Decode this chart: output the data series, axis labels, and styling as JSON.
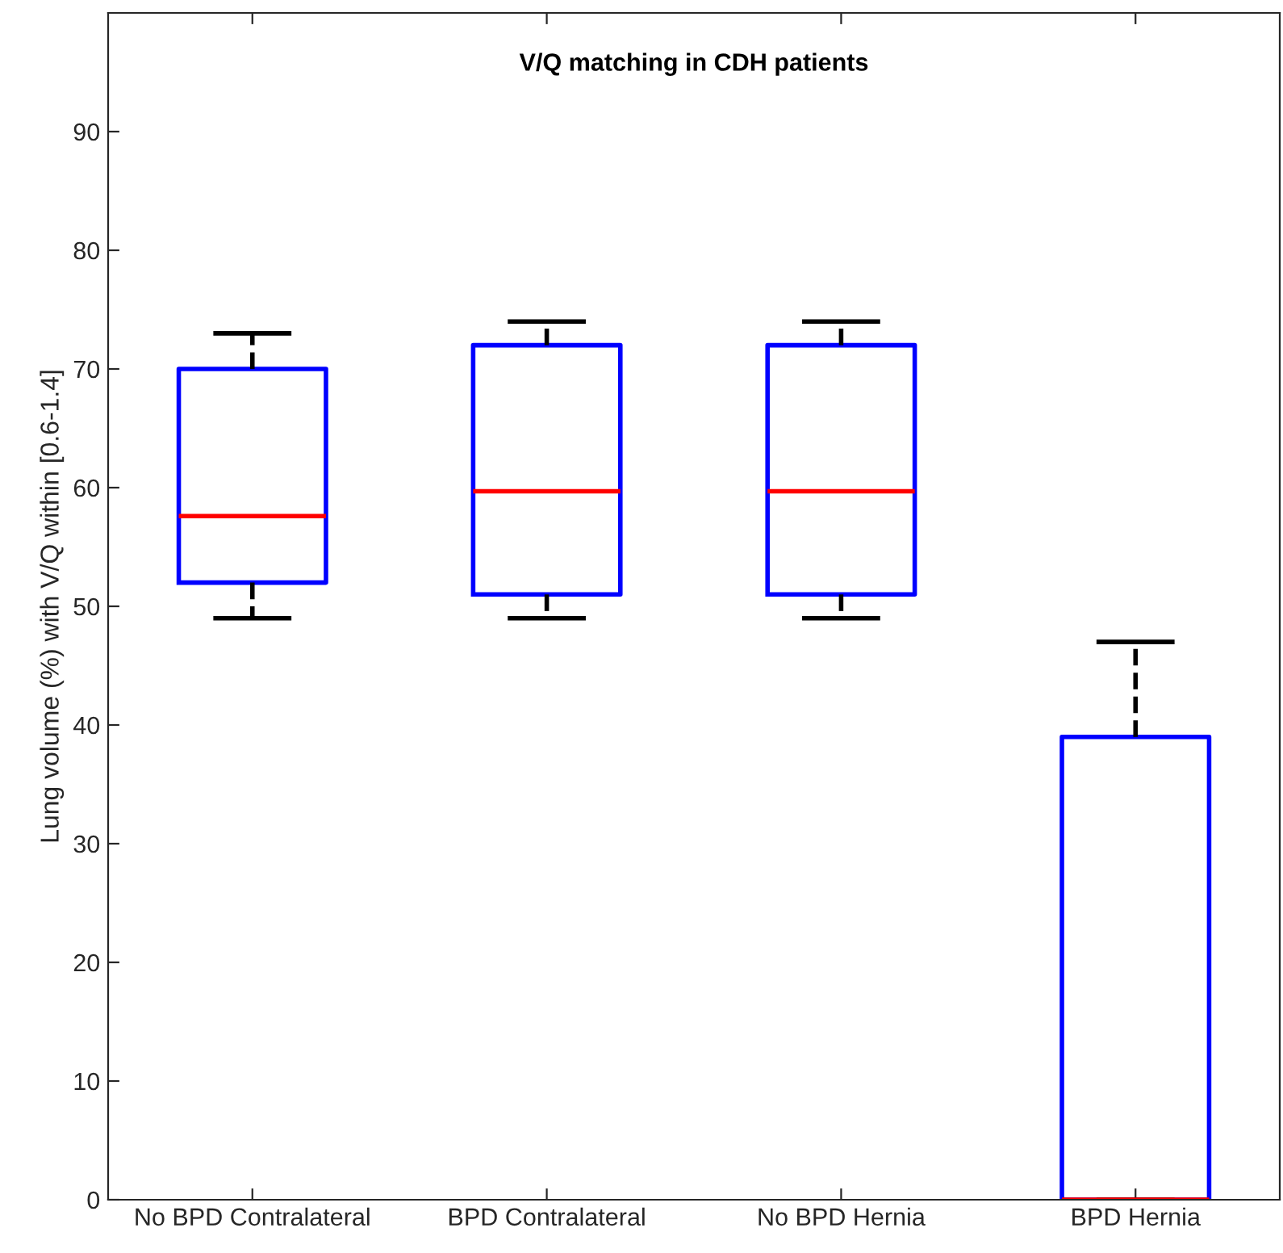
{
  "chart_data": {
    "type": "box",
    "title": "V/Q matching in CDH patients",
    "ylabel": "Lung volume (%) with V/Q within [0.6-1.4]",
    "categories": [
      "No BPD Contralateral",
      "BPD Contralateral",
      "No BPD Hernia",
      "BPD Hernia"
    ],
    "boxes": [
      {
        "low": 49,
        "q1": 52,
        "median": 57.6,
        "q3": 70,
        "high": 73
      },
      {
        "low": 49,
        "q1": 51,
        "median": 59.7,
        "q3": 72,
        "high": 74
      },
      {
        "low": 49,
        "q1": 51,
        "median": 59.7,
        "q3": 72,
        "high": 74
      },
      {
        "low": 0,
        "q1": 0,
        "median": 0,
        "q3": 39,
        "high": 47
      }
    ],
    "color": "#0000ff",
    "ylim": [
      0,
      100
    ],
    "yticks": [
      0,
      10,
      20,
      30,
      40,
      50,
      60,
      70,
      80,
      90
    ],
    "grid": false
  }
}
